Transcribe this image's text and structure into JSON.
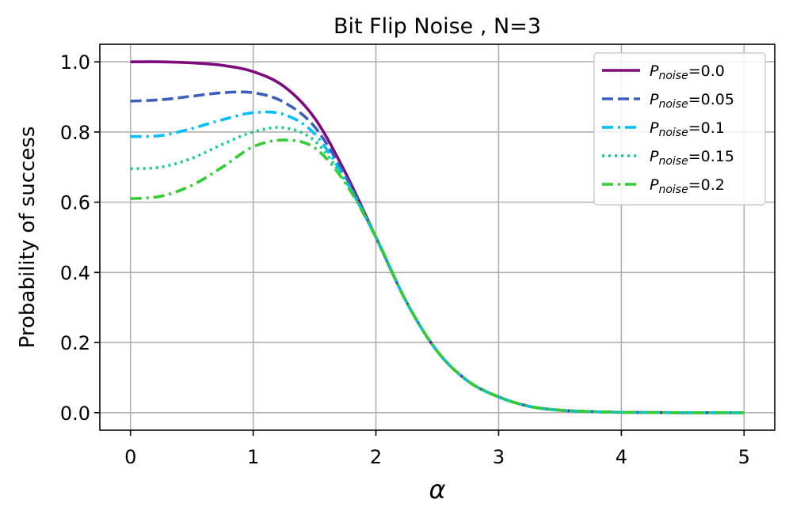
{
  "chart_data": {
    "type": "line",
    "title": "Bit Flip Noise , N=3",
    "xlabel": "α",
    "ylabel": "Probability of success",
    "xlim": [
      -0.25,
      5.25
    ],
    "ylim": [
      -0.05,
      1.05
    ],
    "xticks": [
      0,
      1,
      2,
      3,
      4,
      5
    ],
    "yticks": [
      0.0,
      0.2,
      0.4,
      0.6,
      0.8,
      1.0
    ],
    "xtick_labels": [
      "0",
      "1",
      "2",
      "3",
      "4",
      "5"
    ],
    "ytick_labels": [
      "0.0",
      "0.2",
      "0.4",
      "0.6",
      "0.8",
      "1.0"
    ],
    "grid": true,
    "legend_position": "top-right",
    "x": [
      0.0,
      0.25,
      0.5,
      0.75,
      1.0,
      1.25,
      1.5,
      1.75,
      2.0,
      2.25,
      2.5,
      2.75,
      3.0,
      3.25,
      3.5,
      3.75,
      4.0,
      4.5,
      5.0
    ],
    "series": [
      {
        "legend_main": "P",
        "legend_sub": "noise",
        "legend_value": "=0.0",
        "color": "#7e0a7e",
        "dash": "solid",
        "values": [
          1.0,
          1.0,
          0.997,
          0.99,
          0.972,
          0.93,
          0.84,
          0.685,
          0.5,
          0.315,
          0.175,
          0.09,
          0.045,
          0.018,
          0.007,
          0.003,
          0.001,
          0.0,
          0.0
        ]
      },
      {
        "legend_main": "P",
        "legend_sub": "noise",
        "legend_value": "=0.05",
        "color": "#3a5fbf",
        "dash": "dashed",
        "values": [
          0.888,
          0.892,
          0.902,
          0.912,
          0.912,
          0.885,
          0.815,
          0.675,
          0.5,
          0.315,
          0.175,
          0.09,
          0.045,
          0.018,
          0.007,
          0.003,
          0.001,
          0.0,
          0.0
        ]
      },
      {
        "legend_main": "P",
        "legend_sub": "noise",
        "legend_value": "=0.1",
        "color": "#00bfff",
        "dash": "dashdot",
        "values": [
          0.787,
          0.79,
          0.81,
          0.835,
          0.855,
          0.85,
          0.795,
          0.665,
          0.5,
          0.315,
          0.175,
          0.09,
          0.045,
          0.018,
          0.007,
          0.003,
          0.001,
          0.0,
          0.0
        ]
      },
      {
        "legend_main": "P",
        "legend_sub": "noise",
        "legend_value": "=0.15",
        "color": "#1acc8c",
        "dash": "dotted",
        "values": [
          0.695,
          0.7,
          0.725,
          0.765,
          0.8,
          0.812,
          0.775,
          0.66,
          0.5,
          0.315,
          0.175,
          0.09,
          0.045,
          0.018,
          0.007,
          0.003,
          0.001,
          0.0,
          0.0
        ]
      },
      {
        "legend_main": "P",
        "legend_sub": "noise",
        "legend_value": "=0.2",
        "color": "#32cd32",
        "dash": "dashdot",
        "values": [
          0.61,
          0.617,
          0.648,
          0.7,
          0.758,
          0.777,
          0.755,
          0.655,
          0.5,
          0.315,
          0.175,
          0.09,
          0.045,
          0.018,
          0.007,
          0.003,
          0.001,
          0.0,
          0.0
        ]
      }
    ]
  }
}
